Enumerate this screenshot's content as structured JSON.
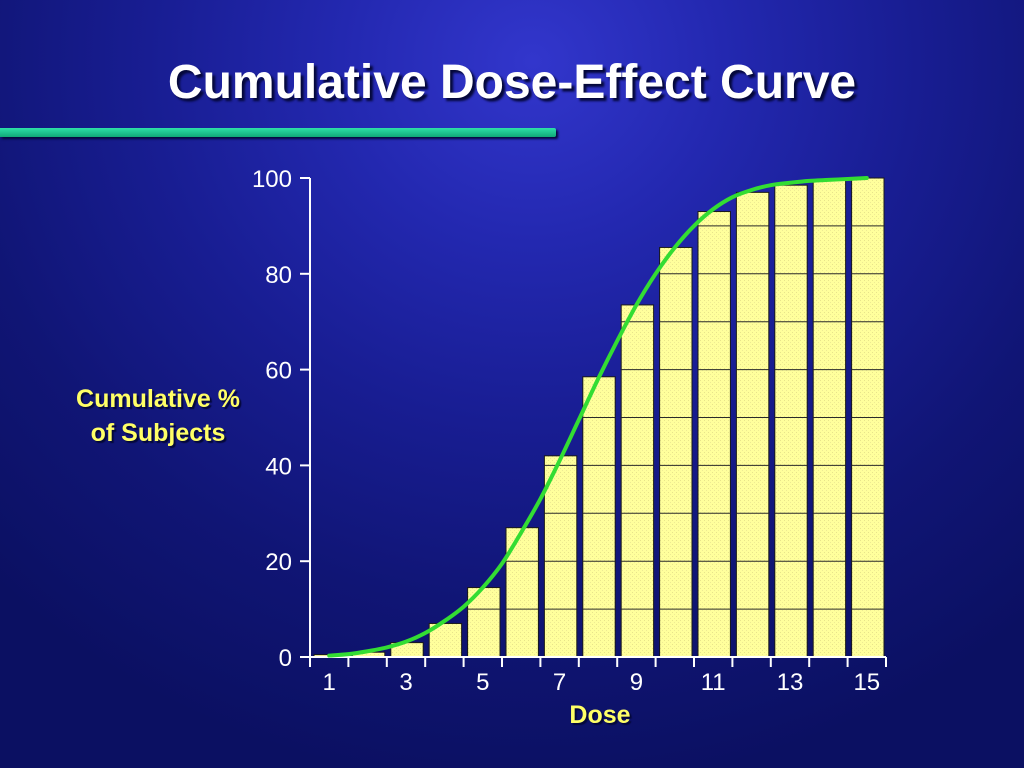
{
  "slide": {
    "title": "Cumulative Dose-Effect Curve",
    "accent_color": "#19c890"
  },
  "chart_data": {
    "type": "bar",
    "title": "Cumulative Dose-Effect Curve",
    "xlabel": "Dose",
    "ylabel_lines": [
      "Cumulative %",
      "of Subjects"
    ],
    "categories": [
      1,
      2,
      3,
      4,
      5,
      6,
      7,
      8,
      9,
      10,
      11,
      12,
      13,
      14,
      15
    ],
    "x_tick_labels": [
      "1",
      "3",
      "5",
      "7",
      "9",
      "11",
      "13",
      "15"
    ],
    "y_tick_labels": [
      "0",
      "20",
      "40",
      "60",
      "80",
      "100"
    ],
    "ylim": [
      0,
      100
    ],
    "series": [
      {
        "type": "bar",
        "values": [
          0.5,
          1,
          3,
          7,
          14.5,
          27,
          42,
          58.5,
          73.5,
          85.5,
          93,
          97,
          98.5,
          99.5,
          100
        ],
        "color": "#ffff99"
      },
      {
        "type": "line",
        "x": [
          1,
          1.5,
          2,
          2.5,
          3,
          3.5,
          4,
          4.5,
          5,
          5.5,
          6,
          6.5,
          7,
          7.5,
          8,
          8.5,
          9,
          9.5,
          10,
          10.5,
          11,
          11.5,
          12,
          12.5,
          13,
          13.5,
          14,
          14.5,
          15
        ],
        "values": [
          0.3,
          0.6,
          1.2,
          2,
          3.2,
          5,
          7.5,
          10.5,
          14.5,
          19.5,
          26,
          33,
          41,
          49.5,
          58,
          66,
          73.5,
          80,
          85.5,
          90,
          93.5,
          96,
          97.5,
          98.5,
          99,
          99.4,
          99.6,
          99.8,
          100
        ],
        "color": "#33dd33"
      }
    ],
    "grid": true
  }
}
